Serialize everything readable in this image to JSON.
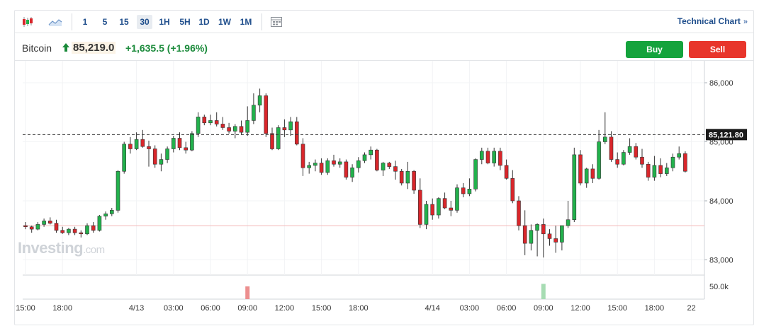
{
  "toolbar": {
    "intervals": [
      "1",
      "5",
      "15",
      "30",
      "1H",
      "5H",
      "1D",
      "1W",
      "1M"
    ],
    "active_interval": "30",
    "technical_chart_label": "Technical Chart",
    "technical_chart_chevron": "»"
  },
  "instrument": {
    "name": "Bitcoin",
    "price": "85,219.0",
    "change": "+1,635.5 (+1.96%)",
    "direction": "up"
  },
  "actions": {
    "buy_label": "Buy",
    "sell_label": "Sell"
  },
  "watermark": {
    "brand": "Investing",
    "suffix": ".com"
  },
  "colors": {
    "up": "#22b14c",
    "down": "#d9262b",
    "accent": "#1f4e8c",
    "buy": "#14a33c",
    "sell": "#e8352b"
  },
  "chart_data": {
    "type": "candlestick",
    "ylim": [
      82900,
      86250
    ],
    "y_ticks": [
      {
        "value": 86000,
        "label": "86,000"
      },
      {
        "value": 85000,
        "label": "85,000"
      },
      {
        "value": 84000,
        "label": "84,000"
      },
      {
        "value": 83000,
        "label": "83,000"
      }
    ],
    "last_price": {
      "value": 85121.8,
      "label": "85,121.80"
    },
    "reference_level": 83580,
    "volume_label": "50.0k",
    "x_ticks": [
      {
        "index": 0,
        "label": "15:00"
      },
      {
        "index": 6,
        "label": "18:00"
      },
      {
        "index": 18,
        "label": "4/13"
      },
      {
        "index": 24,
        "label": "03:00"
      },
      {
        "index": 30,
        "label": "06:00"
      },
      {
        "index": 36,
        "label": "09:00"
      },
      {
        "index": 42,
        "label": "12:00"
      },
      {
        "index": 48,
        "label": "15:00"
      },
      {
        "index": 54,
        "label": "18:00"
      },
      {
        "index": 66,
        "label": "4/14"
      },
      {
        "index": 72,
        "label": "03:00"
      },
      {
        "index": 78,
        "label": "06:00"
      },
      {
        "index": 84,
        "label": "09:00"
      },
      {
        "index": 90,
        "label": "12:00"
      },
      {
        "index": 96,
        "label": "15:00"
      },
      {
        "index": 102,
        "label": "18:00"
      },
      {
        "index": 108,
        "label": "22"
      }
    ],
    "candles": [
      [
        83580,
        83640,
        83520,
        83560
      ],
      [
        83560,
        83580,
        83460,
        83520
      ],
      [
        83520,
        83640,
        83500,
        83600
      ],
      [
        83600,
        83700,
        83560,
        83660
      ],
      [
        83660,
        83720,
        83600,
        83620
      ],
      [
        83620,
        83680,
        83460,
        83500
      ],
      [
        83500,
        83560,
        83440,
        83460
      ],
      [
        83460,
        83540,
        83420,
        83520
      ],
      [
        83520,
        83560,
        83420,
        83460
      ],
      [
        83460,
        83500,
        83380,
        83440
      ],
      [
        83440,
        83620,
        83420,
        83580
      ],
      [
        83580,
        83640,
        83460,
        83500
      ],
      [
        83500,
        83760,
        83480,
        83740
      ],
      [
        83740,
        83820,
        83680,
        83780
      ],
      [
        83780,
        83880,
        83740,
        83840
      ],
      [
        83840,
        84520,
        83800,
        84500
      ],
      [
        84500,
        85000,
        84460,
        84960
      ],
      [
        84960,
        85080,
        84800,
        84880
      ],
      [
        84880,
        85160,
        84860,
        85040
      ],
      [
        85040,
        85200,
        84900,
        84920
      ],
      [
        84920,
        85020,
        84580,
        84880
      ],
      [
        84880,
        84940,
        84560,
        84620
      ],
      [
        84620,
        84800,
        84500,
        84700
      ],
      [
        84700,
        84920,
        84640,
        84880
      ],
      [
        84880,
        85100,
        84820,
        85060
      ],
      [
        85060,
        85160,
        84860,
        84900
      ],
      [
        84900,
        85000,
        84800,
        84860
      ],
      [
        84860,
        85180,
        84840,
        85140
      ],
      [
        85140,
        85500,
        85080,
        85420
      ],
      [
        85420,
        85460,
        85280,
        85320
      ],
      [
        85320,
        85460,
        85280,
        85360
      ],
      [
        85360,
        85500,
        85260,
        85300
      ],
      [
        85300,
        85420,
        85200,
        85240
      ],
      [
        85240,
        85320,
        85140,
        85180
      ],
      [
        85180,
        85300,
        85060,
        85260
      ],
      [
        85260,
        85360,
        85120,
        85160
      ],
      [
        85160,
        85600,
        85100,
        85360
      ],
      [
        85360,
        85820,
        85300,
        85620
      ],
      [
        85620,
        85900,
        85500,
        85780
      ],
      [
        85780,
        85820,
        85080,
        85140
      ],
      [
        85140,
        85240,
        84860,
        84880
      ],
      [
        84880,
        85280,
        84860,
        85240
      ],
      [
        85240,
        85380,
        85080,
        85200
      ],
      [
        85200,
        85420,
        85100,
        85340
      ],
      [
        85340,
        85420,
        84940,
        84960
      ],
      [
        84960,
        85060,
        84420,
        84560
      ],
      [
        84560,
        84660,
        84460,
        84600
      ],
      [
        84600,
        84700,
        84500,
        84640
      ],
      [
        84640,
        84720,
        84440,
        84480
      ],
      [
        84480,
        84720,
        84440,
        84680
      ],
      [
        84680,
        84780,
        84580,
        84620
      ],
      [
        84620,
        84720,
        84560,
        84660
      ],
      [
        84660,
        84700,
        84360,
        84400
      ],
      [
        84400,
        84620,
        84320,
        84560
      ],
      [
        84560,
        84740,
        84480,
        84680
      ],
      [
        84680,
        84820,
        84640,
        84780
      ],
      [
        84780,
        84920,
        84700,
        84860
      ],
      [
        84860,
        84880,
        84500,
        84520
      ],
      [
        84520,
        84660,
        84420,
        84640
      ],
      [
        84640,
        84660,
        84540,
        84580
      ],
      [
        84580,
        84680,
        84360,
        84500
      ],
      [
        84500,
        84540,
        84260,
        84300
      ],
      [
        84300,
        84660,
        84200,
        84500
      ],
      [
        84500,
        84520,
        84120,
        84180
      ],
      [
        84180,
        84380,
        83540,
        83600
      ],
      [
        83600,
        84000,
        83520,
        83940
      ],
      [
        83940,
        84040,
        83680,
        83760
      ],
      [
        83760,
        84060,
        83700,
        84040
      ],
      [
        84040,
        84140,
        83860,
        83880
      ],
      [
        83880,
        84000,
        83740,
        83840
      ],
      [
        83840,
        84280,
        83800,
        84220
      ],
      [
        84220,
        84300,
        84060,
        84120
      ],
      [
        84120,
        84380,
        84080,
        84200
      ],
      [
        84200,
        84720,
        84160,
        84700
      ],
      [
        84700,
        84900,
        84620,
        84840
      ],
      [
        84840,
        84900,
        84620,
        84640
      ],
      [
        84640,
        84900,
        84580,
        84840
      ],
      [
        84840,
        84900,
        84520,
        84600
      ],
      [
        84600,
        84700,
        84360,
        84380
      ],
      [
        84380,
        84520,
        83960,
        84000
      ],
      [
        84000,
        84080,
        83500,
        83580
      ],
      [
        83580,
        83840,
        83080,
        83280
      ],
      [
        83280,
        83600,
        83160,
        83500
      ],
      [
        83500,
        83620,
        83060,
        83600
      ],
      [
        83600,
        83700,
        83040,
        83440
      ],
      [
        83440,
        83520,
        83240,
        83360
      ],
      [
        83360,
        83580,
        83120,
        83300
      ],
      [
        83300,
        83580,
        83160,
        83580
      ],
      [
        83580,
        84000,
        83540,
        83680
      ],
      [
        83680,
        84900,
        83640,
        84780
      ],
      [
        84780,
        84860,
        84260,
        84300
      ],
      [
        84300,
        84560,
        84220,
        84540
      ],
      [
        84540,
        84620,
        84300,
        84380
      ],
      [
        84380,
        85200,
        84360,
        85000
      ],
      [
        85000,
        85500,
        84960,
        85080
      ],
      [
        85080,
        85180,
        84660,
        84700
      ],
      [
        84700,
        84820,
        84560,
        84620
      ],
      [
        84620,
        84860,
        84600,
        84820
      ],
      [
        84820,
        85060,
        84780,
        84920
      ],
      [
        84920,
        84980,
        84700,
        84740
      ],
      [
        84740,
        84880,
        84560,
        84620
      ],
      [
        84620,
        84660,
        84340,
        84400
      ],
      [
        84400,
        84760,
        84340,
        84600
      ],
      [
        84600,
        84720,
        84400,
        84460
      ],
      [
        84460,
        84640,
        84420,
        84560
      ],
      [
        84560,
        84800,
        84500,
        84740
      ],
      [
        84740,
        84920,
        84700,
        84800
      ],
      [
        84800,
        84840,
        84480,
        84500
      ]
    ],
    "volume_bars": [
      {
        "index": 36,
        "dir": "down",
        "value": 0.5
      },
      {
        "index": 84,
        "dir": "up",
        "value": 0.6
      }
    ]
  }
}
